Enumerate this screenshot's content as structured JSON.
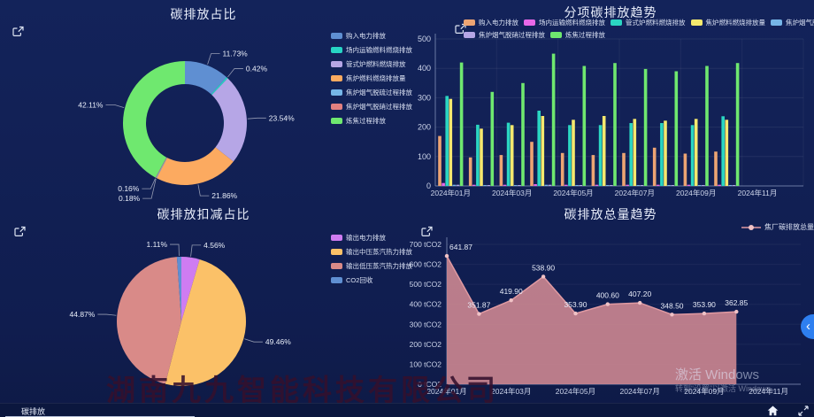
{
  "bottom_bar": {
    "active_tab": "碳排放"
  },
  "controls": {
    "collapse_label": "‹"
  },
  "watermarks": {
    "company": "湖南九九智能科技有限公司",
    "activate_title": "激活 Windows",
    "activate_subtitle": "转到“设置”以激活 Windows。"
  },
  "chart_data": [
    {
      "id": "emission-share",
      "type": "pie",
      "variant": "donut",
      "title": "碳排放占比",
      "legend_position": "right",
      "slices": [
        {
          "label": "购入电力排放",
          "value": 11.73,
          "color": "#5f8fd2"
        },
        {
          "label": "场内运输燃料燃烧排放",
          "value": 0.42,
          "color": "#27d4c4"
        },
        {
          "label": "管式炉燃料燃烧排放",
          "value": 23.54,
          "color": "#b6a6e6"
        },
        {
          "label": "焦炉燃料燃烧排放量",
          "value": 21.86,
          "color": "#fcaa60"
        },
        {
          "label": "焦炉烟气脱硫过程排放",
          "value": 0.18,
          "color": "#76b6e8"
        },
        {
          "label": "焦炉烟气脱硝过程排放",
          "value": 0.16,
          "color": "#e28080"
        },
        {
          "label": "炼焦过程排放",
          "value": 42.11,
          "color": "#6fe86f"
        }
      ]
    },
    {
      "id": "itemized-emission-trend",
      "type": "bar",
      "title": "分项碳排放趋势",
      "legend_position": "top",
      "categories": [
        "2024年01月",
        "2024年02月",
        "2024年03月",
        "2024年04月",
        "2024年05月",
        "2024年06月",
        "2024年07月",
        "2024年08月",
        "2024年09月",
        "2024年10月",
        "2024年11月",
        "2024年12月"
      ],
      "x_tick_interval": 2,
      "ylim": [
        0,
        500
      ],
      "y_ticks": [
        0,
        100,
        200,
        300,
        400,
        500
      ],
      "grid": true,
      "series": [
        {
          "name": "购入电力排放",
          "color": "#eda473",
          "values": [
            170,
            97,
            105,
            150,
            112,
            105,
            112,
            130,
            110,
            117,
            null,
            null
          ]
        },
        {
          "name": "场内运输燃料燃烧排放",
          "color": "#e868e8",
          "values": [
            10,
            4,
            4,
            6,
            4,
            4,
            4,
            4,
            4,
            4,
            null,
            null
          ]
        },
        {
          "name": "管式炉燃料燃烧排放",
          "color": "#2bd6c2",
          "values": [
            306,
            208,
            215,
            256,
            207,
            207,
            214,
            214,
            207,
            237,
            null,
            null
          ]
        },
        {
          "name": "焦炉燃料燃烧排放量",
          "color": "#f5e96e",
          "values": [
            296,
            195,
            207,
            238,
            225,
            238,
            228,
            222,
            228,
            225,
            null,
            null
          ]
        },
        {
          "name": "焦炉烟气脱硫过程排放",
          "color": "#76b6e8",
          "values": [
            4,
            3,
            3,
            4,
            3,
            3,
            3,
            3,
            3,
            3,
            null,
            null
          ]
        },
        {
          "name": "焦炉烟气脱硝过程排放",
          "color": "#b6a6e6",
          "values": [
            4,
            3,
            3,
            4,
            3,
            3,
            3,
            3,
            3,
            3,
            null,
            null
          ]
        },
        {
          "name": "炼焦过程排放",
          "color": "#6fe86f",
          "values": [
            420,
            320,
            350,
            450,
            408,
            418,
            398,
            390,
            408,
            418,
            null,
            null
          ]
        }
      ]
    },
    {
      "id": "emission-deduction-share",
      "type": "pie",
      "variant": "pie",
      "title": "碳排放扣减占比",
      "legend_position": "right",
      "slices": [
        {
          "label": "输出电力排放",
          "value": 4.56,
          "color": "#cf7cf2"
        },
        {
          "label": "输出中压蒸汽热力排放",
          "value": 49.46,
          "color": "#fbc168"
        },
        {
          "label": "输出低压蒸汽热力排放",
          "value": 44.87,
          "color": "#d98a88"
        },
        {
          "label": "CO2回收",
          "value": 1.11,
          "color": "#5f8fd2"
        }
      ]
    },
    {
      "id": "total-emission-trend",
      "type": "area",
      "title": "碳排放总量趋势",
      "legend_position": "top-right",
      "series_name": "焦厂碳排放总量",
      "categories": [
        "2024年01月",
        "2024年02月",
        "2024年03月",
        "2024年04月",
        "2024年05月",
        "2024年06月",
        "2024年07月",
        "2024年08月",
        "2024年09月",
        "2024年10月",
        "2024年11月",
        "2024年12月"
      ],
      "x_tick_interval": 2,
      "values": [
        641.87,
        351.87,
        419.9,
        538.9,
        353.9,
        400.6,
        407.2,
        348.5,
        353.9,
        362.85
      ],
      "y_unit": "tCO2",
      "ylim": [
        0,
        700
      ],
      "y_ticks": [
        0,
        100,
        200,
        300,
        400,
        500,
        600,
        700
      ],
      "colors": {
        "fill": "#cd8791",
        "line": "#e09aa2",
        "marker": "#f0c2c6",
        "label": "#e6ebf8"
      }
    }
  ]
}
